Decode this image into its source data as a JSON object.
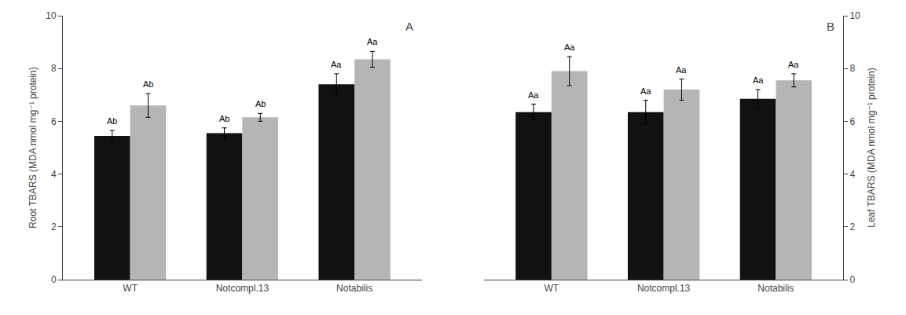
{
  "chart_data": [
    {
      "type": "bar",
      "title": "A",
      "ylabel": "Root TBARS (MDA nmol mg⁻¹ protein)",
      "categories": [
        "WT",
        "Notcompl.13",
        "Notabilis"
      ],
      "series": [
        {
          "color": "#111111",
          "values": [
            5.45,
            5.55,
            7.4
          ],
          "errors": [
            0.2,
            0.2,
            0.4
          ],
          "annotations": [
            "Ab",
            "Ab",
            "Aa"
          ]
        },
        {
          "color": "#b5b5b5",
          "values": [
            6.6,
            6.15,
            8.35
          ],
          "errors": [
            0.45,
            0.15,
            0.3
          ],
          "annotations": [
            "Ab",
            "Ab",
            "Aa"
          ]
        }
      ],
      "ylim": [
        0,
        10
      ],
      "yticks": [
        0,
        2,
        4,
        6,
        8,
        10
      ],
      "grid": false
    },
    {
      "type": "bar",
      "title": "B",
      "ylabel": "Leaf TBARS (MDA nmol mg⁻¹ protein)",
      "categories": [
        "WT",
        "Notcompl.13",
        "Notabilis"
      ],
      "series": [
        {
          "color": "#111111",
          "values": [
            6.35,
            6.35,
            6.85
          ],
          "errors": [
            0.3,
            0.45,
            0.35
          ],
          "annotations": [
            "Aa",
            "Aa",
            "Aa"
          ]
        },
        {
          "color": "#b5b5b5",
          "values": [
            7.9,
            7.2,
            7.55
          ],
          "errors": [
            0.55,
            0.4,
            0.25
          ],
          "annotations": [
            "Aa",
            "Aa",
            "Aa"
          ]
        }
      ],
      "ylim": [
        0,
        10
      ],
      "yticks": [
        0,
        2,
        4,
        6,
        8,
        10
      ],
      "grid": false
    }
  ]
}
